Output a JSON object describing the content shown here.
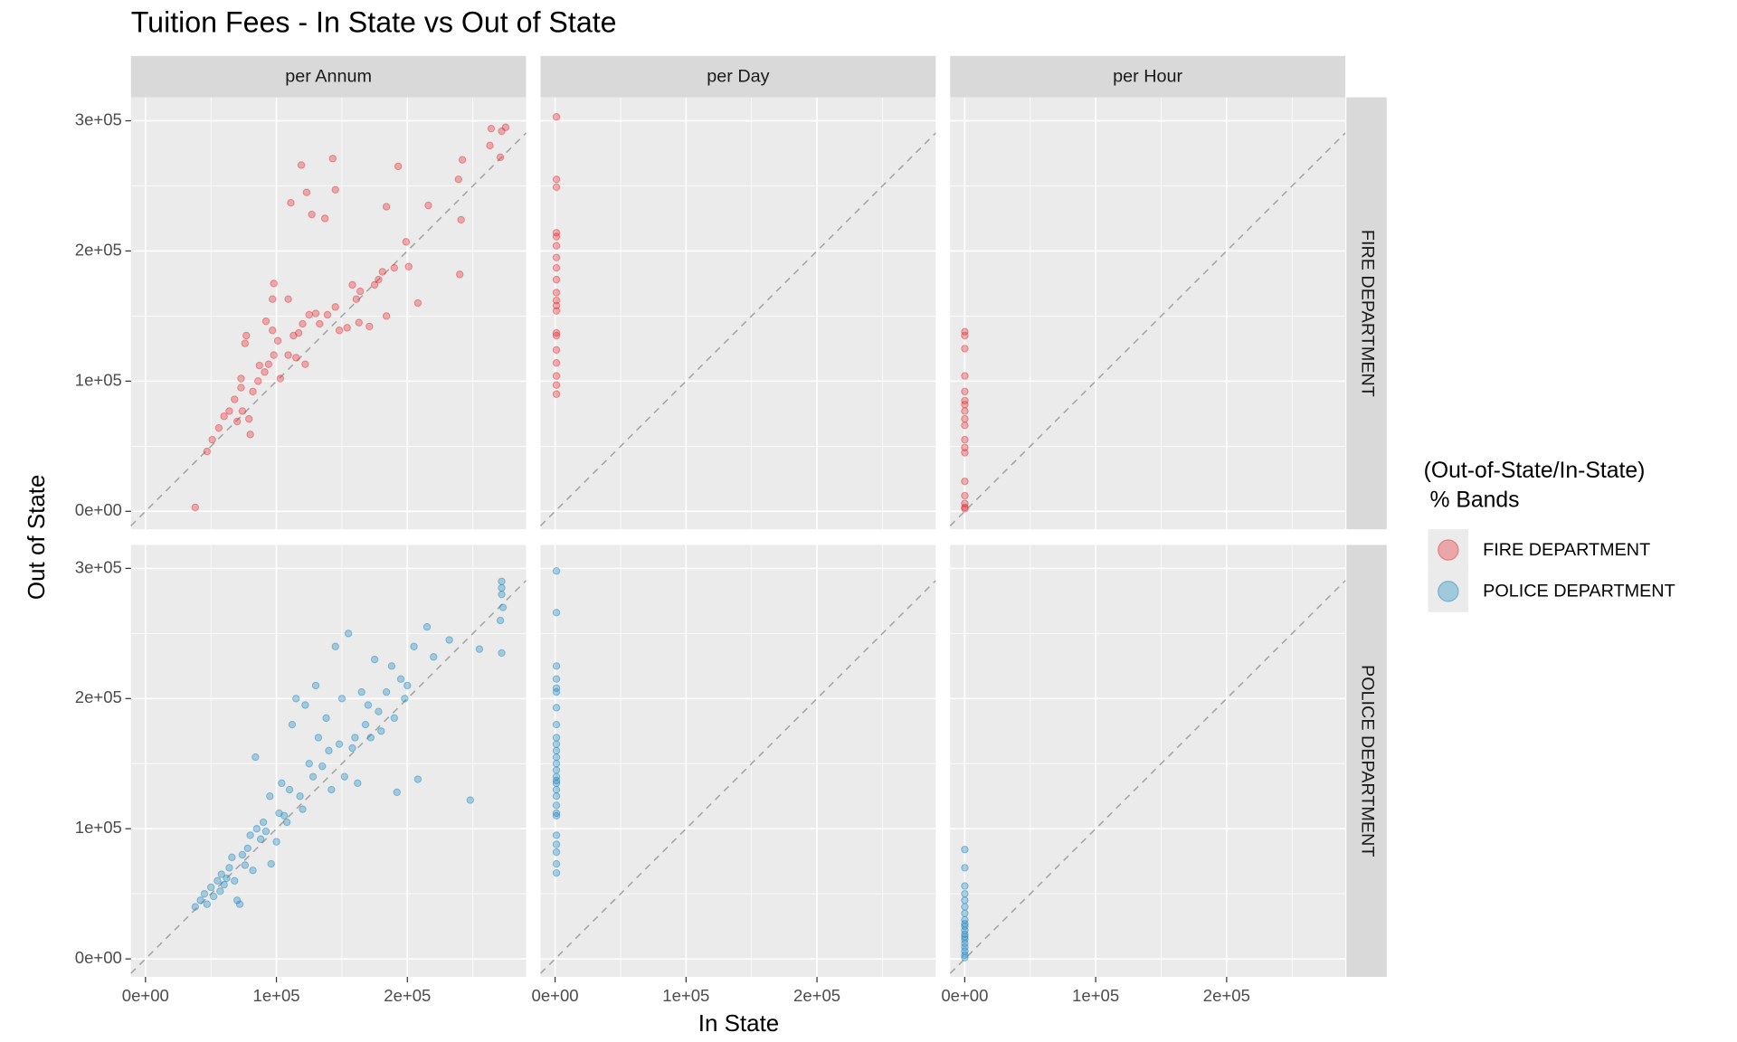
{
  "chart_data": {
    "type": "scatter",
    "title": "Tuition Fees - In State vs Out of State",
    "x_label": "In State",
    "y_label": "Out of State",
    "legend_title": "(Out-of-State/In-State)\n % Bands",
    "columns": [
      "per Annum",
      "per Day",
      "per Hour"
    ],
    "xlim": [
      -11100,
      290600
    ],
    "ylim": [
      -13800,
      318000
    ],
    "xticks": [
      {
        "value": 0,
        "label": "0e+00"
      },
      {
        "value": 100000,
        "label": "1e+05"
      },
      {
        "value": 200000,
        "label": "2e+05"
      }
    ],
    "yticks": [
      {
        "value": 0,
        "label": "0e+00"
      },
      {
        "value": 100000,
        "label": "1e+05"
      },
      {
        "value": 200000,
        "label": "2e+05"
      },
      {
        "value": 300000,
        "label": "3e+05"
      }
    ],
    "x_minor_ticks": [
      50000,
      150000,
      250000
    ],
    "y_minor_ticks": [
      50000,
      150000,
      250000
    ],
    "grid": true,
    "legend_position": "right",
    "series": [
      {
        "name": "FIRE DEPARTMENT",
        "color": "#e8282e",
        "panels": [
          {
            "x": [
              38000,
              47000,
              51000,
              56000,
              60000,
              64000,
              68000,
              73000,
              70000,
              79000,
              80000,
              74000,
              82000,
              86000,
              91000,
              94000,
              98000,
              101000,
              97000,
              76000,
              73000,
              87000,
              103000,
              109000,
              113000,
              117000,
              120000,
              125000,
              130000,
              115000,
              122000,
              98000,
              97000,
              109000,
              77000,
              92000,
              133000,
              139000,
              145000,
              148000,
              154000,
              158000,
              161000,
              164000,
              163000,
              171000,
              175000,
              178000,
              181000,
              184000,
              190000,
              201000,
              199000,
              208000,
              216000,
              184000,
              193000,
              143000,
              119000,
              123000,
              111000,
              137000,
              145000,
              127000,
              241000,
              240000,
              239000,
              242000,
              264000,
              263000,
              272000,
              275000,
              271000
            ],
            "y": [
              3000,
              46000,
              55000,
              64000,
              73000,
              77000,
              86000,
              95000,
              69000,
              71000,
              59000,
              77000,
              92000,
              100000,
              107000,
              113000,
              120000,
              131000,
              139000,
              129000,
              102000,
              112000,
              102000,
              120000,
              135000,
              137000,
              144000,
              151000,
              152000,
              118000,
              113000,
              175000,
              163000,
              163000,
              135000,
              146000,
              144000,
              151000,
              157000,
              139000,
              141000,
              174000,
              163000,
              169000,
              145000,
              142000,
              174000,
              178000,
              184000,
              150000,
              187000,
              188000,
              207000,
              160000,
              235000,
              234000,
              265000,
              271000,
              266000,
              245000,
              237000,
              225000,
              247000,
              228000,
              224000,
              182000,
              255000,
              270000,
              294000,
              281000,
              292000,
              295000,
              272000
            ]
          },
          {
            "x": [
              1000,
              1000,
              1000,
              1000,
              1000,
              1000,
              1000,
              1000,
              1000,
              1000,
              1000,
              1000,
              1000,
              1000,
              1000,
              1000,
              1000,
              1000,
              1000,
              1000
            ],
            "y": [
              303000,
              255000,
              249000,
              214000,
              211000,
              204000,
              195000,
              187000,
              178000,
              162000,
              158000,
              154000,
              137000,
              135000,
              124000,
              114000,
              104000,
              97000,
              90000,
              168000
            ]
          },
          {
            "x": [
              50,
              50,
              50,
              50,
              50,
              50,
              50,
              50,
              50,
              50,
              50,
              50,
              50,
              50,
              50,
              50,
              50,
              50
            ],
            "y": [
              138000,
              135000,
              125000,
              104000,
              92000,
              85000,
              82000,
              77000,
              71000,
              66000,
              55000,
              49000,
              45000,
              23000,
              12000,
              6000,
              3000,
              2000
            ]
          }
        ]
      },
      {
        "name": "POLICE DEPARTMENT",
        "color": "#1a86c0",
        "panels": [
          {
            "x": [
              38000,
              42000,
              45000,
              47000,
              50000,
              52000,
              55000,
              57000,
              58000,
              60000,
              62000,
              64000,
              66000,
              68000,
              70000,
              72000,
              74000,
              76000,
              78000,
              80000,
              82000,
              84000,
              85000,
              88000,
              90000,
              92000,
              95000,
              96000,
              100000,
              102000,
              104000,
              106000,
              108000,
              110000,
              112000,
              115000,
              118000,
              120000,
              122000,
              125000,
              128000,
              130000,
              132000,
              135000,
              138000,
              140000,
              142000,
              145000,
              148000,
              150000,
              152000,
              155000,
              158000,
              160000,
              162000,
              165000,
              168000,
              170000,
              172000,
              175000,
              178000,
              180000,
              184000,
              188000,
              190000,
              192000,
              195000,
              198000,
              200000,
              205000,
              208000,
              215000,
              220000,
              232000,
              248000,
              255000,
              272000,
              272000,
              272000,
              273000,
              272000,
              271000
            ],
            "y": [
              40000,
              45000,
              50000,
              42000,
              55000,
              48000,
              60000,
              52000,
              65000,
              57000,
              62000,
              70000,
              78000,
              60000,
              45000,
              42000,
              80000,
              72000,
              85000,
              95000,
              68000,
              155000,
              100000,
              92000,
              105000,
              98000,
              125000,
              73000,
              90000,
              112000,
              135000,
              110000,
              105000,
              130000,
              180000,
              200000,
              125000,
              115000,
              195000,
              150000,
              140000,
              210000,
              170000,
              148000,
              185000,
              160000,
              130000,
              240000,
              165000,
              200000,
              140000,
              250000,
              162000,
              170000,
              135000,
              205000,
              180000,
              195000,
              170000,
              230000,
              190000,
              175000,
              205000,
              225000,
              185000,
              128000,
              215000,
              200000,
              210000,
              240000,
              138000,
              255000,
              232000,
              245000,
              122000,
              238000,
              290000,
              285000,
              280000,
              270000,
              235000,
              260000
            ]
          },
          {
            "x": [
              1000,
              1000,
              1000,
              1000,
              1000,
              1000,
              1000,
              1000,
              1000,
              1000,
              1000,
              1000,
              1000,
              1000,
              1000,
              1000,
              1000,
              1000,
              1000,
              1000,
              1000,
              1000,
              1000,
              1000,
              1000,
              1000,
              1000
            ],
            "y": [
              298000,
              266000,
              225000,
              215000,
              208000,
              205000,
              193000,
              180000,
              170000,
              165000,
              160000,
              155000,
              150000,
              145000,
              140000,
              137000,
              135000,
              130000,
              125000,
              118000,
              112000,
              110000,
              95000,
              88000,
              82000,
              73000,
              66000
            ]
          },
          {
            "x": [
              50,
              50,
              50,
              50,
              50,
              50,
              50,
              50,
              50,
              50,
              50,
              50,
              50,
              50,
              50,
              50,
              50,
              50,
              50
            ],
            "y": [
              84000,
              70000,
              56000,
              50000,
              45000,
              40000,
              35000,
              30000,
              27000,
              25000,
              22000,
              19000,
              17000,
              15000,
              12000,
              9000,
              6000,
              3000,
              1000
            ]
          }
        ]
      }
    ]
  }
}
